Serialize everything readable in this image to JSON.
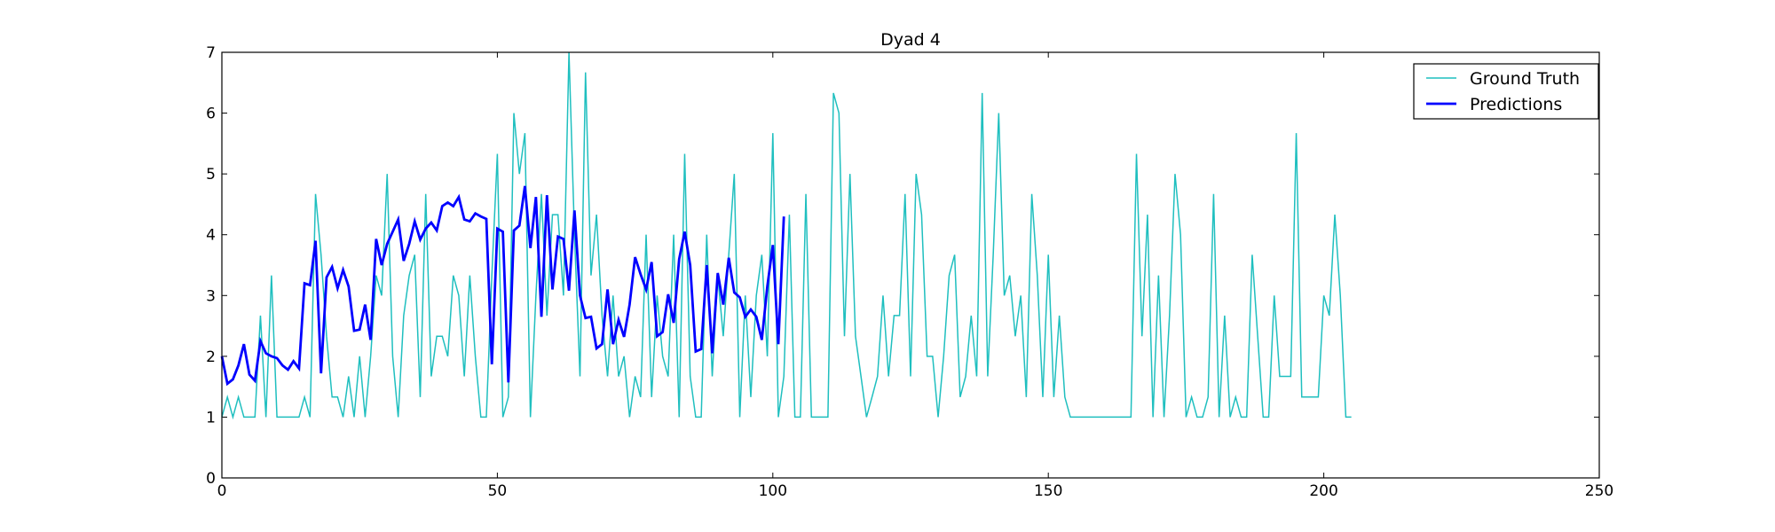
{
  "chart_data": {
    "type": "line",
    "title": "Dyad 4",
    "xlabel": "",
    "ylabel": "",
    "xlim": [
      0,
      250
    ],
    "ylim": [
      0,
      7
    ],
    "x_ticks": [
      0,
      50,
      100,
      150,
      200,
      250
    ],
    "y_ticks": [
      0,
      1,
      2,
      3,
      4,
      5,
      6,
      7
    ],
    "grid": false,
    "legend_position": "top-right",
    "series": [
      {
        "name": "Ground Truth",
        "color": "#1fbfbf",
        "style": "thin",
        "x_start": 0,
        "values": [
          1,
          1.33,
          1,
          1.33,
          1,
          1,
          1,
          2.67,
          1,
          3.33,
          1,
          1,
          1,
          1,
          1,
          1.33,
          1,
          4.67,
          3.67,
          2.33,
          1.33,
          1.33,
          1,
          1.67,
          1,
          2,
          1,
          2,
          3.33,
          3,
          5,
          2,
          1,
          2.67,
          3.33,
          3.67,
          1.33,
          4.67,
          1.67,
          2.33,
          2.33,
          2,
          3.33,
          3,
          1.67,
          3.33,
          2,
          1,
          1,
          3.33,
          5.33,
          1,
          1.33,
          6,
          5,
          5.67,
          1,
          3,
          4.67,
          2.67,
          4.33,
          4.33,
          3,
          7,
          4,
          1.67,
          6.67,
          3.33,
          4.33,
          2.67,
          1.67,
          3,
          1.67,
          2,
          1,
          1.67,
          1.33,
          4,
          1.33,
          3,
          2,
          1.67,
          4,
          1,
          5.33,
          1.67,
          1,
          1,
          4,
          1.67,
          3.33,
          2.33,
          3.67,
          5,
          1,
          3,
          1.33,
          3,
          3.67,
          2,
          5.67,
          1,
          1.67,
          4.33,
          1,
          1,
          4.67,
          1,
          1,
          1,
          1,
          6.33,
          6,
          2.33,
          5,
          2.33,
          1.67,
          1,
          1.33,
          1.67,
          3,
          1.67,
          2.67,
          2.67,
          4.67,
          1.67,
          5,
          4.33,
          2,
          2,
          1,
          2,
          3.33,
          3.67,
          1.33,
          1.67,
          2.67,
          1.67,
          6.33,
          1.67,
          3.67,
          6,
          3,
          3.33,
          2.33,
          3,
          1.33,
          4.67,
          3.33,
          1.33,
          3.67,
          1.33,
          2.67,
          1.33,
          1,
          1,
          1,
          1,
          1,
          1,
          1,
          1,
          1,
          1,
          1,
          1,
          5.33,
          2.33,
          4.33,
          1,
          3.33,
          1,
          2.67,
          5,
          4,
          1,
          1.33,
          1,
          1,
          1.33,
          4.67,
          1,
          2.67,
          1,
          1.33,
          1,
          1,
          3.67,
          2.33,
          1,
          1,
          3,
          1.67,
          1.67,
          1.67,
          5.67,
          1.33,
          1.33,
          1.33,
          1.33,
          3,
          2.67,
          4.33,
          3,
          1,
          1
        ]
      },
      {
        "name": "Predictions",
        "color": "#0000ff",
        "style": "thick",
        "x_start": 0,
        "values": [
          2,
          1.55,
          1.62,
          1.85,
          2.2,
          1.7,
          1.6,
          2.25,
          2.05,
          2,
          1.97,
          1.85,
          1.78,
          1.92,
          1.8,
          3.2,
          3.17,
          3.9,
          1.72,
          3.3,
          3.47,
          3.12,
          3.42,
          3.15,
          2.42,
          2.44,
          2.85,
          2.27,
          3.93,
          3.5,
          3.85,
          4.05,
          4.25,
          3.57,
          3.85,
          4.22,
          3.92,
          4.1,
          4.2,
          4.07,
          4.47,
          4.53,
          4.47,
          4.62,
          4.25,
          4.22,
          4.35,
          4.3,
          4.26,
          1.87,
          4.1,
          4.05,
          1.57,
          4.07,
          4.15,
          4.8,
          3.78,
          4.62,
          2.65,
          4.65,
          3.1,
          3.97,
          3.93,
          3.08,
          4.4,
          3,
          2.63,
          2.65,
          2.13,
          2.2,
          3.1,
          2.2,
          2.6,
          2.32,
          2.85,
          3.63,
          3.35,
          3.1,
          3.55,
          2.33,
          2.4,
          3.02,
          2.55,
          3.6,
          4.05,
          3.5,
          2.08,
          2.12,
          3.5,
          2.05,
          3.37,
          2.85,
          3.62,
          3.05,
          2.97,
          2.65,
          2.77,
          2.65,
          2.27,
          3.15,
          3.83,
          2.2,
          4.3
        ]
      }
    ]
  }
}
